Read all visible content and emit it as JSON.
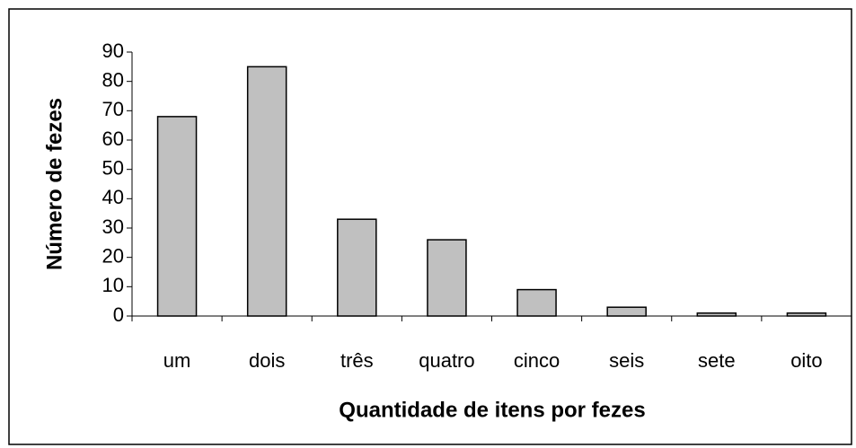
{
  "chart_data": {
    "type": "bar",
    "x_label": "Quantidade de itens por fezes",
    "y_label": "Número de fezes",
    "categories": [
      "um",
      "dois",
      "três",
      "quatro",
      "cinco",
      "seis",
      "sete",
      "oito"
    ],
    "values": [
      68,
      85,
      33,
      26,
      9,
      3,
      1,
      1
    ],
    "color": "#c0c0c0",
    "ylim": [
      0,
      90
    ],
    "yticks": [
      0,
      10,
      20,
      30,
      40,
      50,
      60,
      70,
      80,
      90
    ],
    "grid": false
  }
}
